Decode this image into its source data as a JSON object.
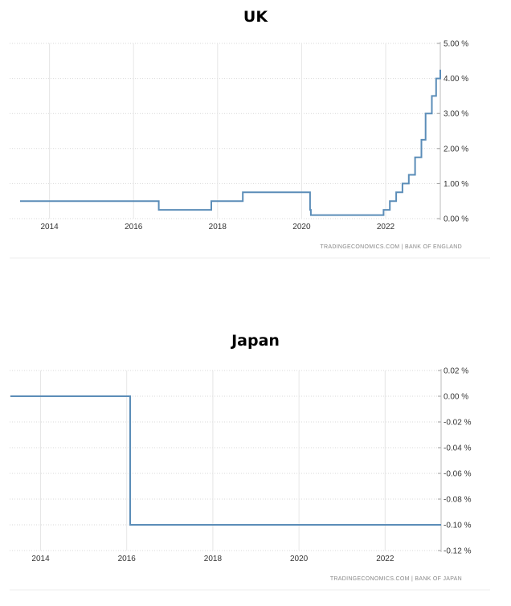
{
  "chart_data": [
    {
      "type": "line",
      "title": "UK",
      "source": "TRADINGECONOMICS.COM  |  BANK OF ENGLAND",
      "x_ticks": [
        {
          "value": 2014,
          "label": "2014"
        },
        {
          "value": 2016,
          "label": "2016"
        },
        {
          "value": 2018,
          "label": "2018"
        },
        {
          "value": 2020,
          "label": "2020"
        },
        {
          "value": 2022,
          "label": "2022"
        }
      ],
      "y_ticks": [
        {
          "value": 0,
          "label": "0.00 %"
        },
        {
          "value": 1,
          "label": "1.00 %"
        },
        {
          "value": 2,
          "label": "2.00 %"
        },
        {
          "value": 3,
          "label": "3.00 %"
        },
        {
          "value": 4,
          "label": "4.00 %"
        },
        {
          "value": 5,
          "label": "5.00 %"
        }
      ],
      "xlim": [
        2013.3,
        2023.3
      ],
      "ylim": [
        0,
        5
      ],
      "grid": true,
      "y_axis_side": "right",
      "color": "#5b8db8",
      "series": [
        {
          "step": true,
          "points": [
            [
              2013.3,
              0.5
            ],
            [
              2016.6,
              0.25
            ],
            [
              2017.85,
              0.5
            ],
            [
              2018.6,
              0.75
            ],
            [
              2020.2,
              0.25
            ],
            [
              2020.22,
              0.1
            ],
            [
              2021.95,
              0.25
            ],
            [
              2022.1,
              0.5
            ],
            [
              2022.25,
              0.75
            ],
            [
              2022.4,
              1.0
            ],
            [
              2022.55,
              1.25
            ],
            [
              2022.7,
              1.75
            ],
            [
              2022.85,
              2.25
            ],
            [
              2022.95,
              3.0
            ],
            [
              2023.1,
              3.5
            ],
            [
              2023.2,
              4.0
            ],
            [
              2023.3,
              4.25
            ]
          ]
        }
      ]
    },
    {
      "type": "line",
      "title": "Japan",
      "source": "TRADINGECONOMICS.COM  |  BANK OF JAPAN",
      "x_ticks": [
        {
          "value": 2014,
          "label": "2014"
        },
        {
          "value": 2016,
          "label": "2016"
        },
        {
          "value": 2018,
          "label": "2018"
        },
        {
          "value": 2020,
          "label": "2020"
        },
        {
          "value": 2022,
          "label": "2022"
        }
      ],
      "y_ticks": [
        {
          "value": 0.02,
          "label": "0.02 %"
        },
        {
          "value": 0.0,
          "label": "0.00 %"
        },
        {
          "value": -0.02,
          "label": "-0.02 %"
        },
        {
          "value": -0.04,
          "label": "-0.04 %"
        },
        {
          "value": -0.06,
          "label": "-0.06 %"
        },
        {
          "value": -0.08,
          "label": "-0.08 %"
        },
        {
          "value": -0.1,
          "label": "-0.10 %"
        },
        {
          "value": -0.12,
          "label": "-0.12 %"
        }
      ],
      "xlim": [
        2013.3,
        2023.3
      ],
      "ylim": [
        -0.12,
        0.02
      ],
      "grid": true,
      "y_axis_side": "right",
      "color": "#5b8db8",
      "series": [
        {
          "step": true,
          "points": [
            [
              2013.3,
              0.0
            ],
            [
              2016.08,
              -0.1
            ],
            [
              2023.3,
              -0.1
            ]
          ]
        }
      ]
    }
  ]
}
